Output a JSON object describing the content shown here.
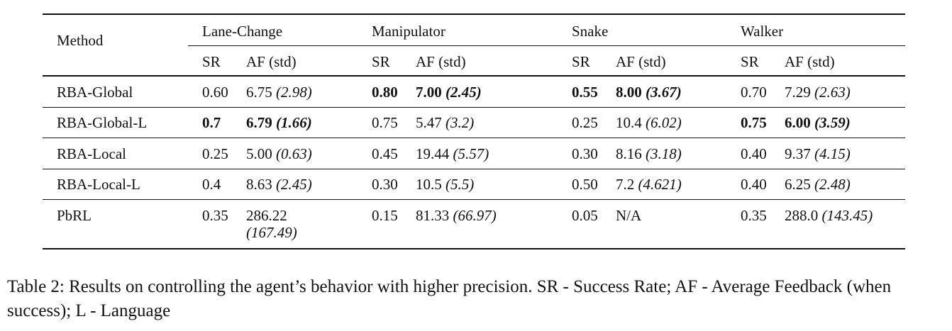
{
  "table": {
    "method_header": "Method",
    "groups": [
      "Lane-Change",
      "Manipulator",
      "Snake",
      "Walker"
    ],
    "sub_sr": "SR",
    "sub_af": "AF (std)",
    "rows": [
      {
        "method": "RBA-Global",
        "cells": [
          {
            "sr": "0.60",
            "af": "6.75",
            "std": "(2.98)",
            "sr_bold": false,
            "af_bold": false
          },
          {
            "sr": "0.80",
            "af": "7.00",
            "std": "(2.45)",
            "sr_bold": true,
            "af_bold": true
          },
          {
            "sr": "0.55",
            "af": "8.00",
            "std": "(3.67)",
            "sr_bold": true,
            "af_bold": true
          },
          {
            "sr": "0.70",
            "af": "7.29",
            "std": "(2.63)",
            "sr_bold": false,
            "af_bold": false
          }
        ]
      },
      {
        "method": "RBA-Global-L",
        "cells": [
          {
            "sr": "0.7",
            "af": "6.79",
            "std": "(1.66)",
            "sr_bold": true,
            "af_bold": true
          },
          {
            "sr": "0.75",
            "af": "5.47",
            "std": "(3.2)",
            "sr_bold": false,
            "af_bold": false
          },
          {
            "sr": "0.25",
            "af": "10.4",
            "std": "(6.02)",
            "sr_bold": false,
            "af_bold": false
          },
          {
            "sr": "0.75",
            "af": "6.00",
            "std": "(3.59)",
            "sr_bold": true,
            "af_bold": true
          }
        ]
      },
      {
        "method": "RBA-Local",
        "cells": [
          {
            "sr": "0.25",
            "af": "5.00",
            "std": "(0.63)",
            "sr_bold": false,
            "af_bold": false
          },
          {
            "sr": "0.45",
            "af": "19.44",
            "std": "(5.57)",
            "sr_bold": false,
            "af_bold": false
          },
          {
            "sr": "0.30",
            "af": "8.16",
            "std": "(3.18)",
            "sr_bold": false,
            "af_bold": false
          },
          {
            "sr": "0.40",
            "af": "9.37",
            "std": "(4.15)",
            "sr_bold": false,
            "af_bold": false
          }
        ]
      },
      {
        "method": "RBA-Local-L",
        "cells": [
          {
            "sr": "0.4",
            "af": "8.63",
            "std": "(2.45)",
            "sr_bold": false,
            "af_bold": false
          },
          {
            "sr": "0.30",
            "af": "10.5",
            "std": "(5.5)",
            "sr_bold": false,
            "af_bold": false
          },
          {
            "sr": "0.50",
            "af": "7.2",
            "std": "(4.621)",
            "sr_bold": false,
            "af_bold": false
          },
          {
            "sr": "0.40",
            "af": "6.25",
            "std": "(2.48)",
            "sr_bold": false,
            "af_bold": false
          }
        ]
      },
      {
        "method": "PbRL",
        "cells": [
          {
            "sr": "0.35",
            "af": "286.22",
            "std": "(167.49)",
            "sr_bold": false,
            "af_bold": false
          },
          {
            "sr": "0.15",
            "af": "81.33",
            "std": "(66.97)",
            "sr_bold": false,
            "af_bold": false
          },
          {
            "sr": "0.05",
            "af": "N/A",
            "std": "",
            "sr_bold": false,
            "af_bold": false
          },
          {
            "sr": "0.35",
            "af": "288.0",
            "std": "(143.45)",
            "sr_bold": false,
            "af_bold": false
          }
        ]
      }
    ]
  },
  "caption": {
    "label": "Table 2:",
    "text": "Results on controlling the agent’s behavior with higher precision. SR - Success Rate; AF - Average Feedback (when success); L - Language"
  }
}
